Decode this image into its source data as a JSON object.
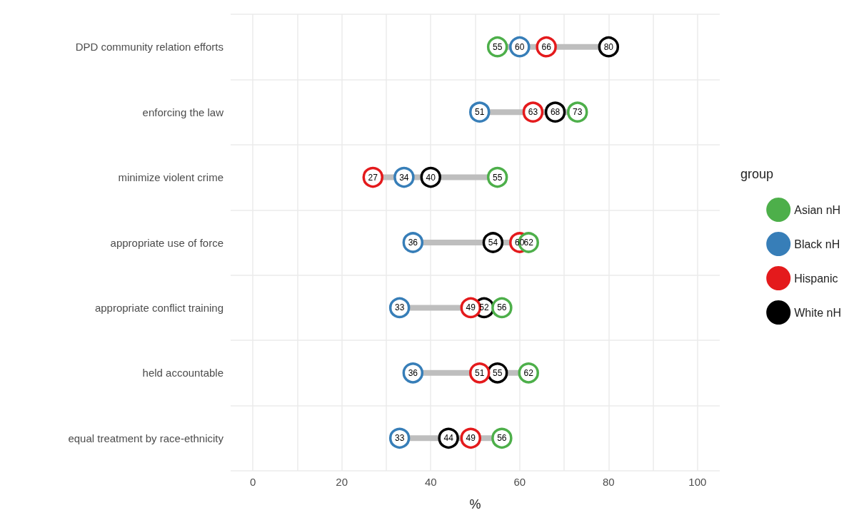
{
  "chart_data": {
    "type": "scatter",
    "orientation": "horizontal",
    "xlabel": "%",
    "legend_title": "group",
    "legend": "right",
    "grid": true,
    "marker": "circle",
    "data_labels": true,
    "categories": [
      "DPD community relation efforts",
      "enforcing the law",
      "minimize violent crime",
      "appropriate use of force",
      "appropriate conflict training",
      "held accountable",
      "equal treatment by race-ethnicity"
    ],
    "xlim": [
      -5,
      105
    ],
    "xticks": [
      0,
      {
        "value": 10,
        "label": null
      },
      20,
      {
        "value": 30,
        "label": null
      },
      40,
      {
        "value": 50,
        "label": null
      },
      60,
      {
        "value": 70,
        "label": null
      },
      80,
      {
        "value": 90,
        "label": null
      },
      100
    ],
    "series": [
      {
        "name": "Asian nH",
        "color": "#4daf4a",
        "values": [
          55,
          73,
          55,
          62,
          56,
          62,
          56
        ]
      },
      {
        "name": "Black nH",
        "color": "#377eb8",
        "values": [
          60,
          51,
          34,
          36,
          33,
          36,
          33
        ]
      },
      {
        "name": "Hispanic",
        "color": "#e41a1c",
        "values": [
          66,
          63,
          27,
          60,
          49,
          51,
          49
        ]
      },
      {
        "name": "White nH",
        "color": "#000000",
        "values": [
          80,
          68,
          40,
          54,
          52,
          55,
          44
        ]
      }
    ]
  }
}
